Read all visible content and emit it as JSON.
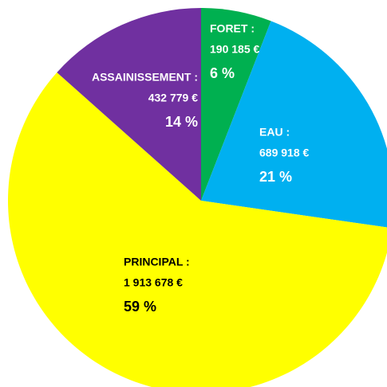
{
  "chart_data": {
    "type": "pie",
    "categories": [
      "FORET :",
      "EAU :",
      "PRINCIPAL :",
      "ASSAINISSEMENT :"
    ],
    "values": [
      190185,
      689918,
      1913678,
      432779
    ],
    "value_labels": [
      "190 185 €",
      "689 918 €",
      "1 913 678 €",
      "432 779 €"
    ],
    "percentages": [
      6,
      21,
      59,
      14
    ],
    "percentage_labels": [
      "6 %",
      "21 %",
      "59 %",
      "14 %"
    ],
    "colors": [
      "#00b050",
      "#00b0f0",
      "#ffff00",
      "#7030a0"
    ],
    "label_colors": [
      "#ffffff",
      "#ffffff",
      "#000000",
      "#ffffff"
    ]
  }
}
